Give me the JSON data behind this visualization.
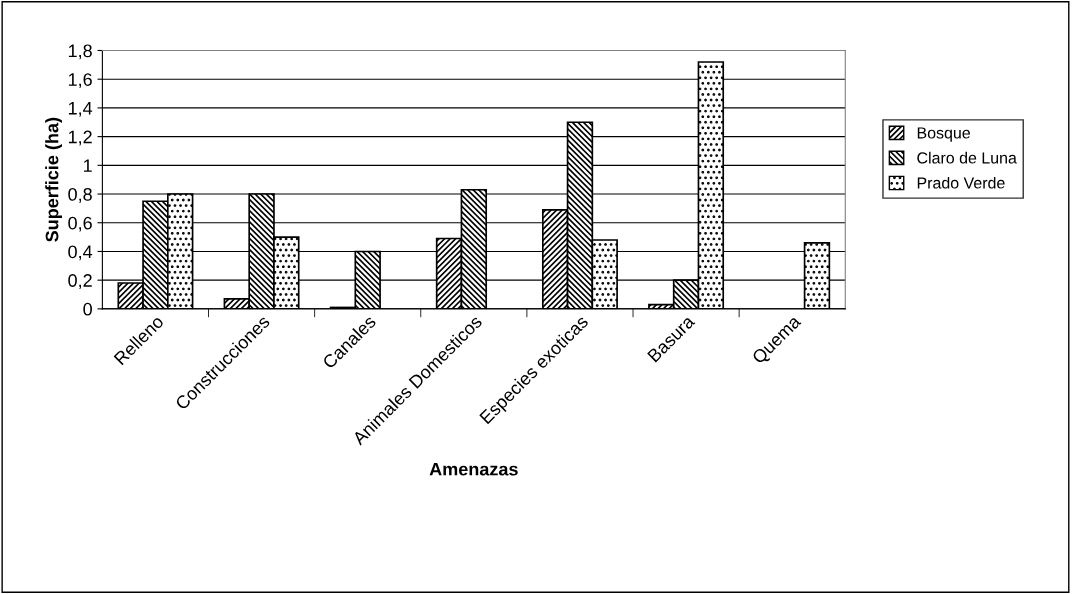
{
  "chart_data": {
    "type": "bar",
    "xlabel": "Amenazas",
    "ylabel": "Superficie (ha)",
    "categories": [
      "Relleno",
      "Construcciones",
      "Canales",
      "Animales Domesticos",
      "Especies exoticas",
      "Basura",
      "Quema"
    ],
    "series": [
      {
        "name": "Bosque",
        "color": "#000000",
        "values": [
          0.18,
          0.07,
          0.01,
          0.49,
          0.69,
          0.03,
          null
        ]
      },
      {
        "name": "Claro de Luna",
        "color": "#000000",
        "values": [
          0.75,
          0.8,
          0.4,
          0.83,
          1.3,
          0.2,
          null
        ]
      },
      {
        "name": "Prado Verde",
        "color": "#000000",
        "values": [
          0.8,
          0.5,
          null,
          null,
          0.48,
          1.72,
          0.46
        ]
      }
    ],
    "ylim": [
      0,
      1.8
    ],
    "yticks": [
      0,
      {
        "value": 0.2,
        "label": "0,2"
      },
      {
        "value": 0.4,
        "label": "0,4"
      },
      {
        "value": 0.6,
        "label": "0,6"
      },
      {
        "value": 0.8,
        "label": "0,8"
      },
      1,
      {
        "value": 1.2,
        "label": "1,2"
      },
      {
        "value": 1.4,
        "label": "1,4"
      },
      {
        "value": 1.6,
        "label": "1,6"
      },
      {
        "value": 1.8,
        "label": "1,8"
      }
    ],
    "grid": "y",
    "legend": "right"
  }
}
